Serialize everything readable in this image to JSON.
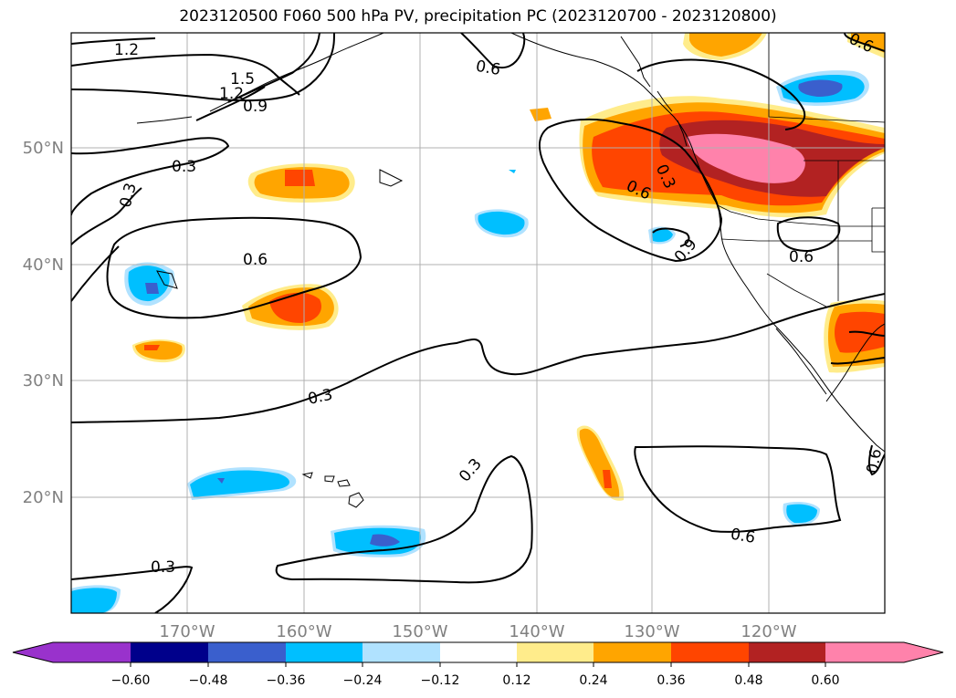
{
  "title": "2023120500 F060 500 hPa PV, precipitation PC (2023120700 - 2023120800)",
  "map": {
    "lon_labels": [
      "170°W",
      "160°W",
      "150°W",
      "140°W",
      "130°W",
      "120°W"
    ],
    "lat_labels": [
      "50°N",
      "40°N",
      "30°N",
      "20°N"
    ],
    "contour_labels": [
      "1.2",
      "1.5",
      "1.2",
      "0.9",
      "0.3",
      "0.3",
      "0.6",
      "0.6",
      "0.6",
      "0.3",
      "0.9",
      "0.6",
      "0.3",
      "0.3",
      "0.3",
      "0.6",
      "0.6",
      "0.6"
    ]
  },
  "colorbar": {
    "ticks": [
      "−0.60",
      "−0.48",
      "−0.36",
      "−0.24",
      "−0.12",
      "0.12",
      "0.24",
      "0.36",
      "0.48",
      "0.60"
    ],
    "colors": [
      "#9932cc",
      "#00008b",
      "#3a5fcd",
      "#00bfff",
      "#b0e2ff",
      "#ffffff",
      "#ffec8b",
      "#ffa500",
      "#ff4500",
      "#b22222",
      "#ff82ab",
      "#ff82ab"
    ]
  },
  "colors": {
    "pos1": "#ffec8b",
    "pos2": "#ffa500",
    "pos3": "#ff4500",
    "pos4": "#b22222",
    "pos5": "#ff82ab",
    "neg1": "#b0e2ff",
    "neg2": "#00bfff",
    "neg3": "#3a5fcd",
    "grid": "#b0b0b0",
    "axis_label": "#808080"
  }
}
